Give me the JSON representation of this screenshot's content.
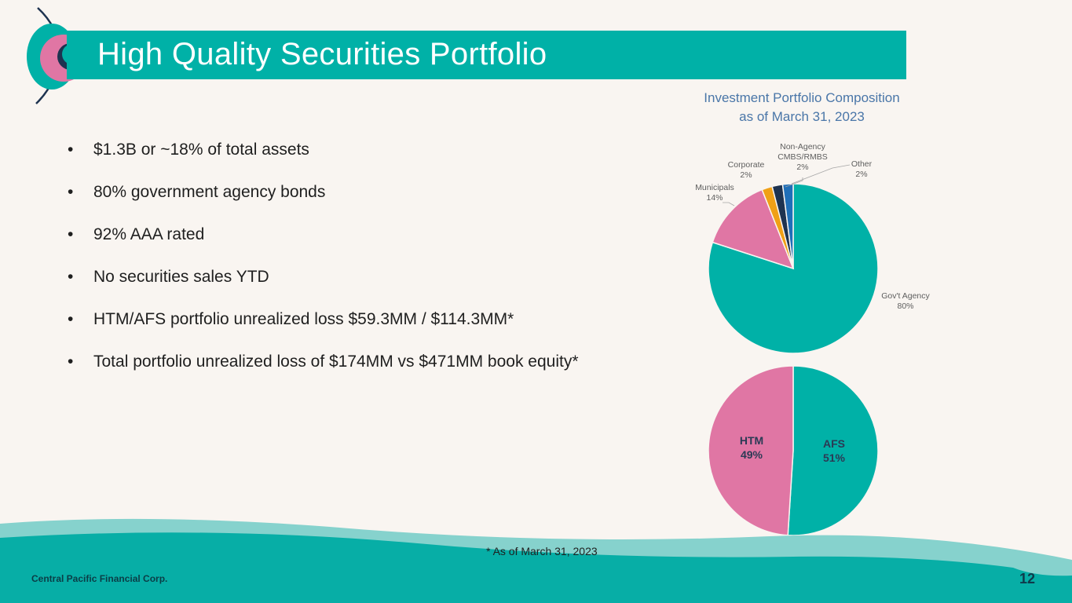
{
  "header": {
    "title": "High Quality Securities Portfolio"
  },
  "bullets": [
    "$1.3B or ~18% of total assets",
    "80% government agency bonds",
    "92% AAA rated",
    "No securities sales YTD",
    "HTM/AFS portfolio unrealized loss $59.3MM / $114.3MM*",
    "Total portfolio unrealized loss of $174MM vs $471MM book equity*"
  ],
  "bullet_symbol": "•",
  "chart_title": {
    "line1": "Investment Portfolio Composition",
    "line2": "as of March 31, 2023"
  },
  "chart_data": [
    {
      "type": "pie",
      "title": "Investment Portfolio Composition as of March 31, 2023",
      "categories": [
        "Gov't Agency",
        "Municipals",
        "Corporate",
        "Non-Agency CMBS/RMBS",
        "Other"
      ],
      "values": [
        80,
        14,
        2,
        2,
        2
      ],
      "value_labels": [
        "80%",
        "14%",
        "2%",
        "2%",
        "2%"
      ],
      "colors": [
        "#00b1a7",
        "#e076a4",
        "#f0a016",
        "#1e3350",
        "#1f6fb8"
      ]
    },
    {
      "type": "pie",
      "categories": [
        "AFS",
        "HTM"
      ],
      "values": [
        51,
        49
      ],
      "value_labels": [
        "51%",
        "49%"
      ],
      "colors": [
        "#00b1a7",
        "#e076a4"
      ]
    }
  ],
  "footnote": "* As of March 31, 2023",
  "footer": {
    "company": "Central Pacific Financial Corp.",
    "page_number": "12"
  },
  "colors": {
    "accent": "#00b1a7",
    "pink": "#e076a4",
    "background": "#f9f5f1"
  }
}
